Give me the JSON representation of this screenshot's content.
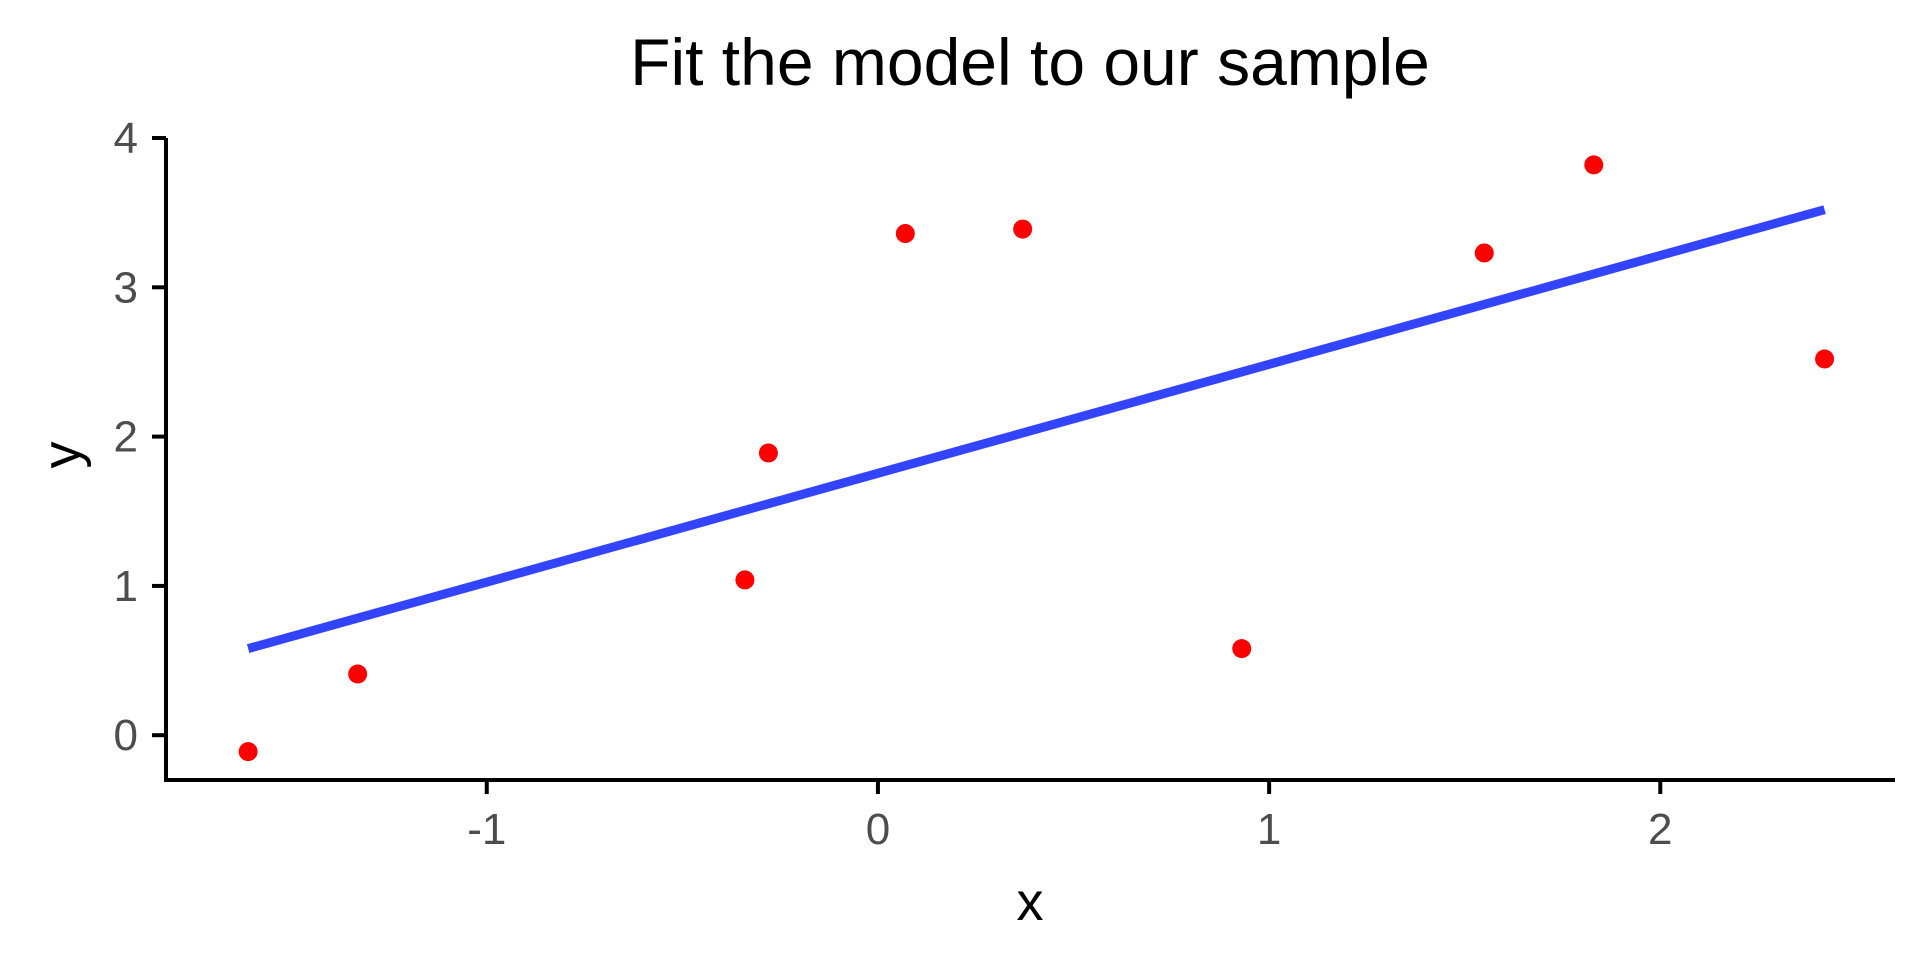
{
  "chart_data": {
    "type": "scatter",
    "title": "Fit the model to our sample",
    "xlabel": "x",
    "ylabel": "y",
    "xlim": [
      -1.82,
      2.6
    ],
    "ylim": [
      -0.3,
      4.0
    ],
    "x_ticks": [
      -1,
      0,
      1,
      2
    ],
    "y_ticks": [
      0,
      1,
      2,
      3,
      4
    ],
    "x_tick_labels": [
      "-1",
      "0",
      "1",
      "2"
    ],
    "y_tick_labels": [
      "0",
      "1",
      "2",
      "3",
      "4"
    ],
    "grid": false,
    "legend": "none",
    "series": [
      {
        "kind": "points",
        "color": "#ff0000",
        "x": [
          -1.61,
          -1.33,
          -0.34,
          -0.28,
          0.07,
          0.37,
          0.93,
          1.55,
          1.83,
          2.42
        ],
        "y": [
          -0.11,
          0.41,
          1.04,
          1.89,
          3.36,
          3.39,
          0.58,
          3.23,
          3.82,
          2.52
        ]
      },
      {
        "kind": "fit-line",
        "color": "#3344ff",
        "x": [
          -1.61,
          2.42
        ],
        "y": [
          0.58,
          3.52
        ]
      }
    ]
  }
}
